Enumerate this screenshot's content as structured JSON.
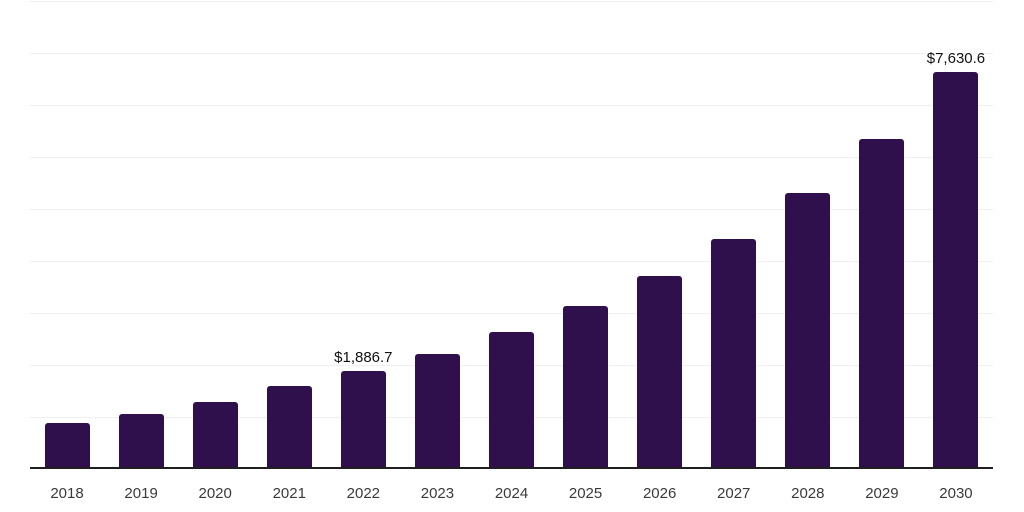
{
  "chart": {
    "background": "#ffffff",
    "bar_color": "#30104C",
    "axis_line_color": "#1f1f1f",
    "gridline_color": "#f0f0f0",
    "tick_label_color": "#3a3a3a",
    "data_label_color": "#111111"
  },
  "chart_data": {
    "type": "bar",
    "title": "",
    "xlabel": "",
    "ylabel": "",
    "categories": [
      "2018",
      "2019",
      "2020",
      "2021",
      "2022",
      "2023",
      "2024",
      "2025",
      "2026",
      "2027",
      "2028",
      "2029",
      "2030"
    ],
    "values": [
      890,
      1065,
      1290,
      1600,
      1886.7,
      2210,
      2640,
      3135,
      3710,
      4425,
      5300,
      6340,
      7630.6
    ],
    "data_labels": [
      {
        "category": "2022",
        "text": "$1,886.7"
      },
      {
        "category": "2030",
        "text": "$7,630.6"
      }
    ],
    "ylim": [
      0,
      9000
    ],
    "gridline_step": 1000,
    "grid": "horizontal",
    "y_axis_labels_visible": false,
    "legend": "none"
  }
}
